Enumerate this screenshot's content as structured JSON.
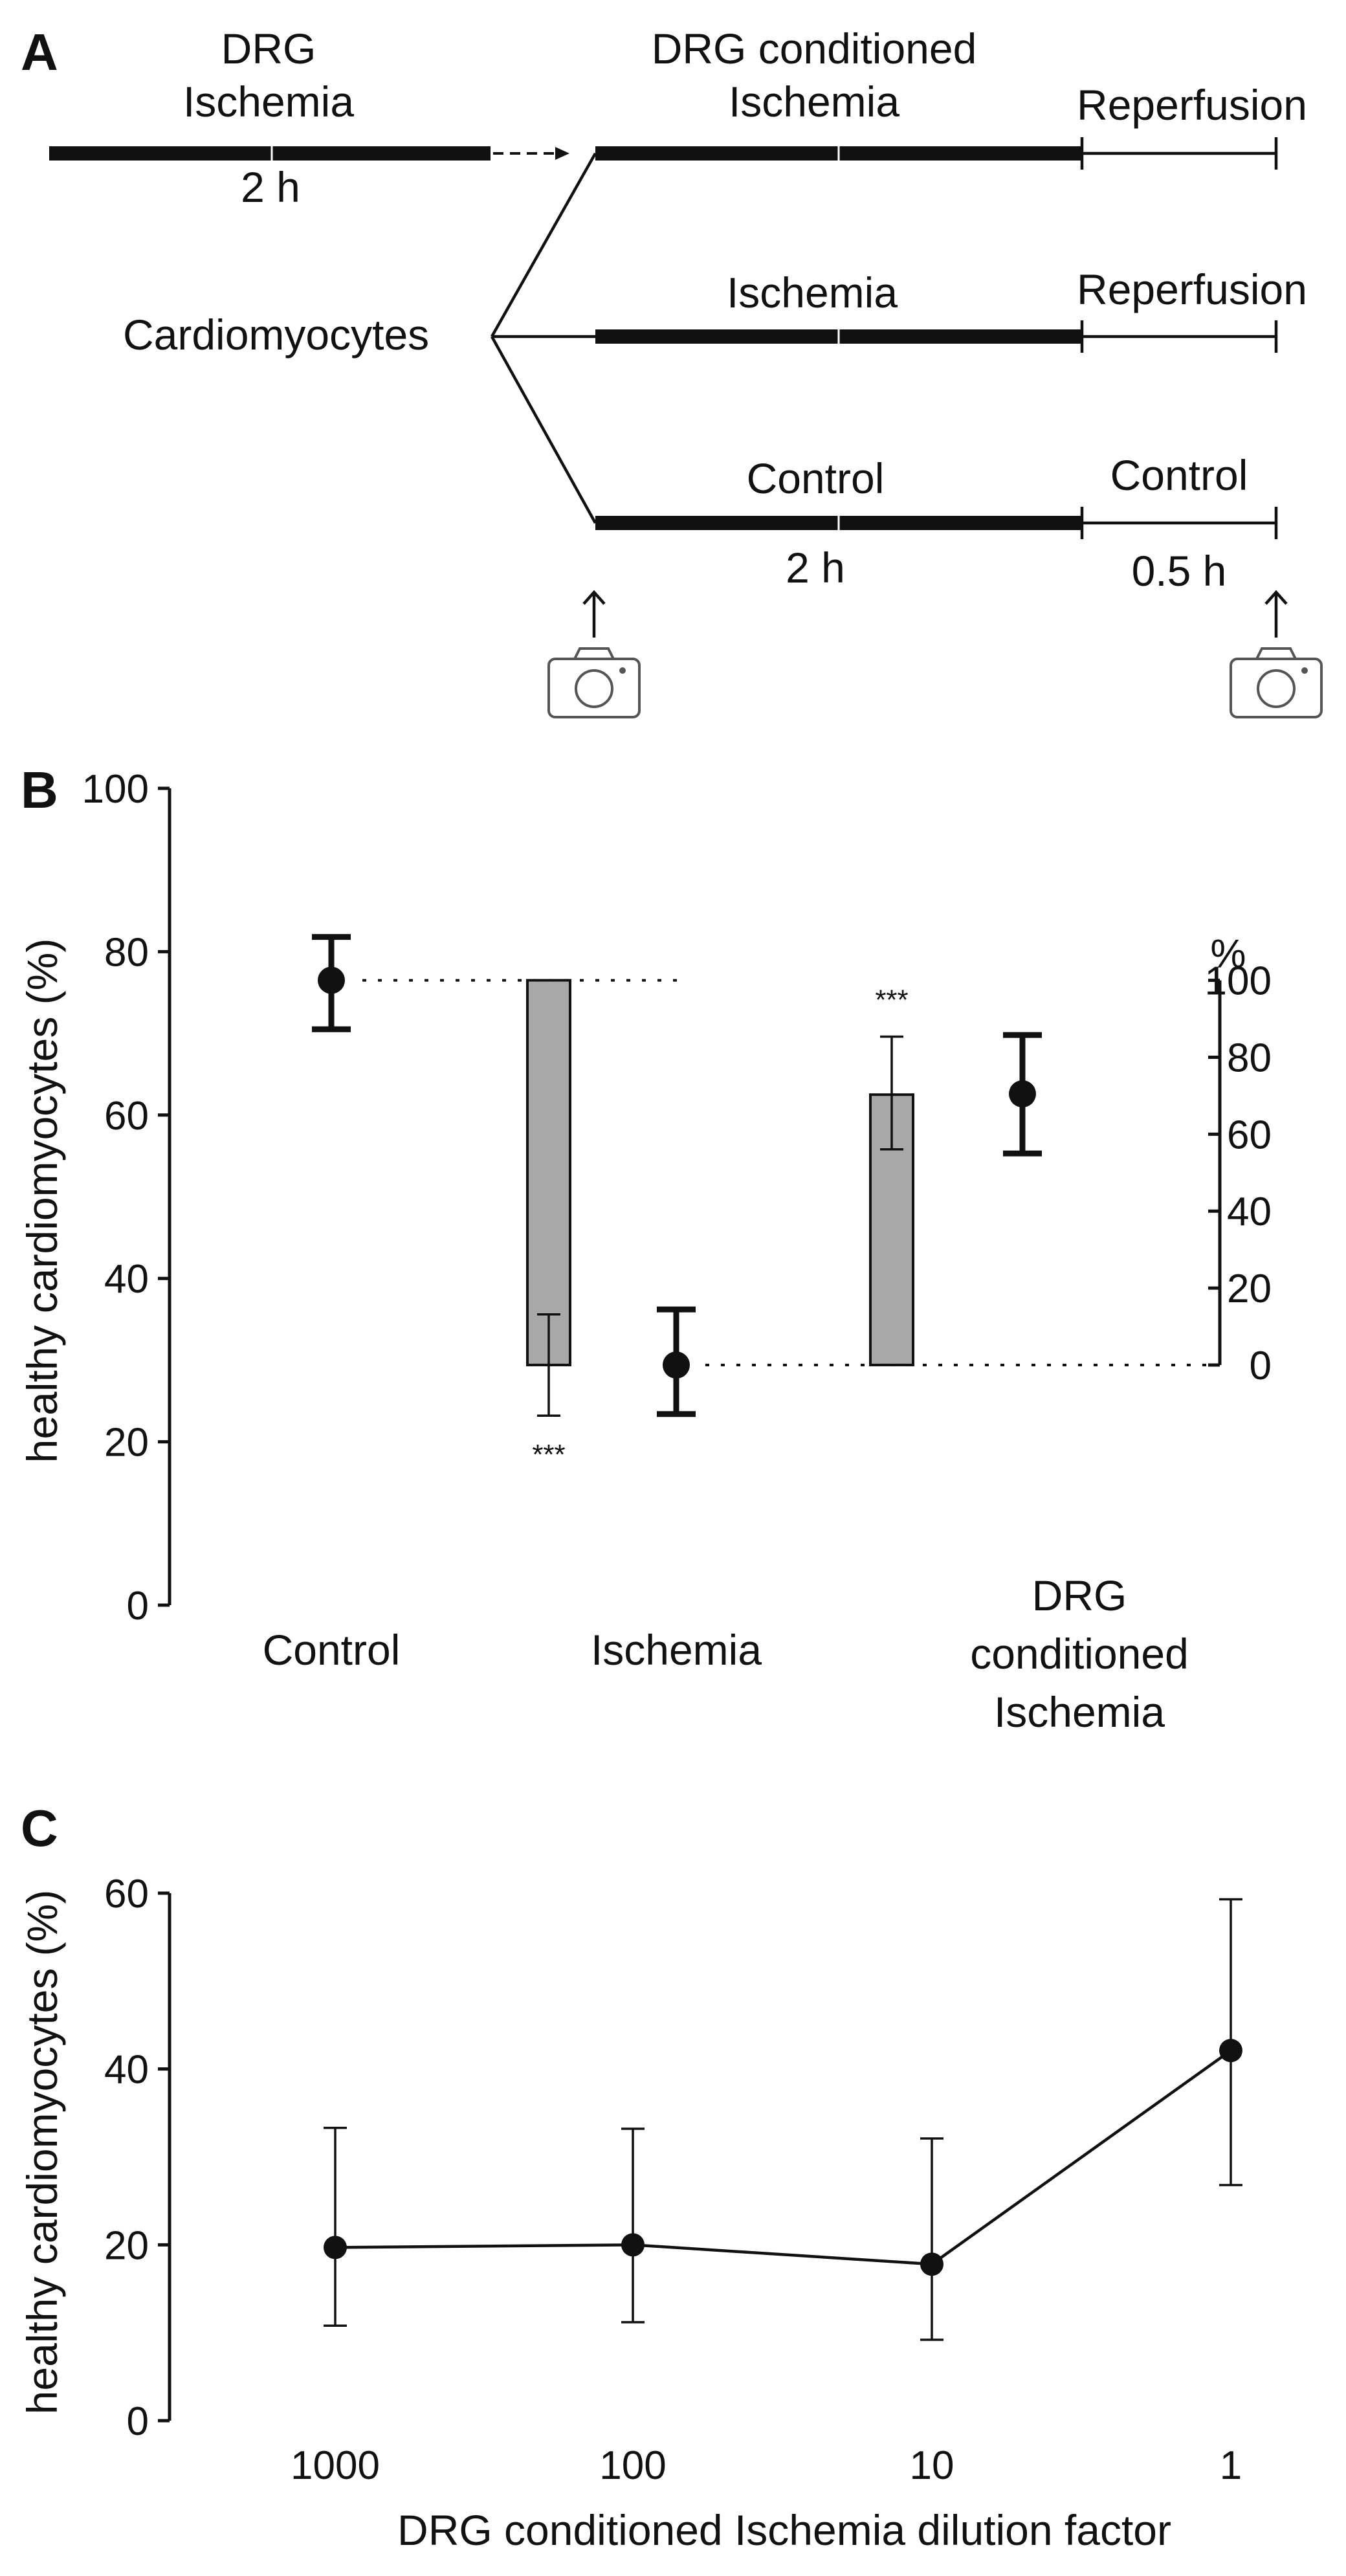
{
  "panel_a": {
    "letter": "A",
    "pre_label_line1": "DRG",
    "pre_label_line2": "Ischemia",
    "pre_duration": "2 h",
    "cells_label": "Cardiomyocytes",
    "row1_main_line1": "DRG conditioned",
    "row1_main_line2": "Ischemia",
    "row1_reperf": "Reperfusion",
    "row2_main": "Ischemia",
    "row2_reperf": "Reperfusion",
    "row3_main": "Control",
    "row3_reperf": "Control",
    "main_duration": "2 h",
    "reperf_duration": "0.5 h",
    "icons": [
      "up-arrow-icon",
      "camera-icon"
    ]
  },
  "chart_data": [
    {
      "panel": "B",
      "type": "scatter",
      "ylabel": "healthy cardiomyocytes (%)",
      "ylim": [
        0,
        100
      ],
      "yticks": [
        0,
        20,
        40,
        60,
        80,
        100
      ],
      "categories": [
        "Control",
        "Ischemia",
        "DRG conditioned Ischemia"
      ],
      "points": [
        {
          "category": "Control",
          "value": 76.5,
          "low": 70.5,
          "high": 81.8
        },
        {
          "category": "Ischemia",
          "value": 29.4,
          "low": 23.4,
          "high": 36.2
        },
        {
          "category": "DRG conditioned Ischemia",
          "value": 62.6,
          "low": 55.3,
          "high": 69.8
        }
      ],
      "diff_bars": [
        {
          "between": "Control-Ischemia",
          "base": 76.5,
          "value": 29.4,
          "err_low": 23.2,
          "err_high": 35.6,
          "annotation": "***"
        },
        {
          "between": "Ischemia-DRG conditioned Ischemia",
          "base": 29.4,
          "value": 62.5,
          "err_low": 55.8,
          "err_high": 69.6,
          "annotation": "***"
        }
      ],
      "right_axis": {
        "label": "%",
        "ticks": [
          0,
          20,
          40,
          60,
          80,
          100
        ],
        "zero_at": 29.4,
        "hundred_at": 76.5
      },
      "reference_lines": [
        76.5,
        29.4
      ],
      "grid": false
    },
    {
      "panel": "C",
      "type": "line",
      "ylabel": "healthy cardiomyocytes (%)",
      "xlabel": "DRG conditioned Ischemia dilution factor",
      "ylim": [
        0,
        60
      ],
      "yticks": [
        0,
        20,
        40,
        60
      ],
      "categories": [
        "1000",
        "100",
        "10",
        "1"
      ],
      "series": [
        {
          "values": [
            19.7,
            20.0,
            17.8,
            42.1
          ],
          "err_low": [
            10.8,
            11.2,
            9.2,
            26.8
          ],
          "err_high": [
            33.3,
            33.2,
            32.1,
            59.3
          ]
        }
      ],
      "grid": false
    }
  ]
}
